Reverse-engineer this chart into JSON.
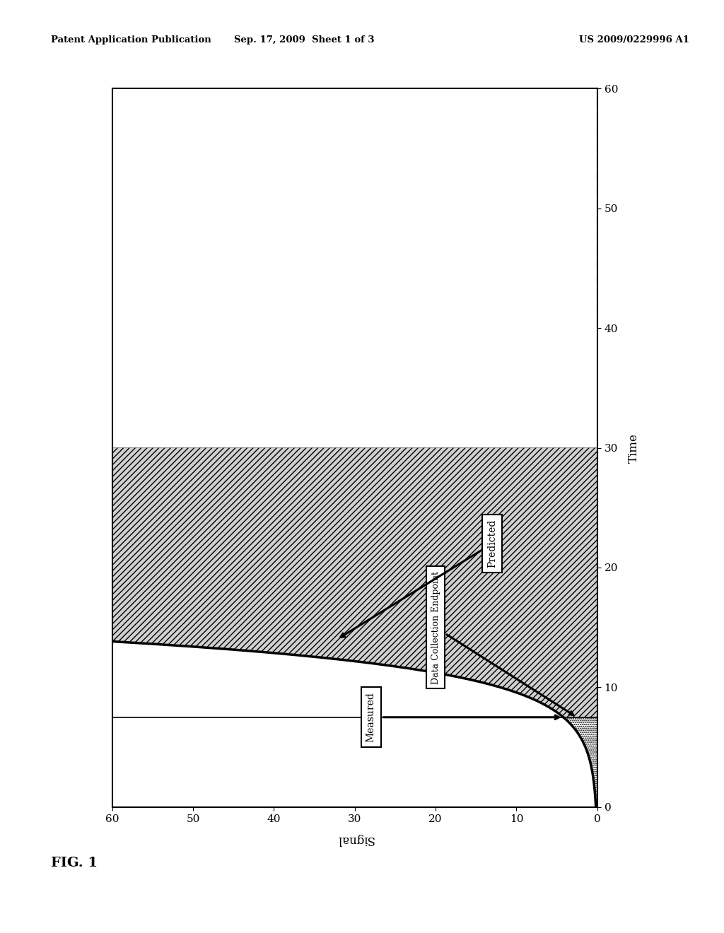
{
  "header_left": "Patent Application Publication",
  "header_center": "Sep. 17, 2009  Sheet 1 of 3",
  "header_right": "US 2009/0229996 A1",
  "fig_label": "FIG. 1",
  "xlabel_rotated": "Signal",
  "ylabel_right": "Time",
  "x_ticks": [
    0,
    10,
    20,
    30,
    40,
    50,
    60
  ],
  "y_ticks": [
    0,
    10,
    20,
    30,
    40,
    50,
    60
  ],
  "xlim": [
    60,
    0
  ],
  "ylim": [
    0,
    60
  ],
  "S0": 0.18,
  "k": 0.42,
  "endpoint_time": 7.5,
  "predicted_end_time": 30,
  "dashed_start": 40,
  "dashed_end": 60,
  "annotation_measured": "Measured",
  "annotation_endpoint": "Data Collection Endpoint",
  "annotation_predicted": "Predicted",
  "background_color": "#ffffff",
  "curve_lw": 2.5
}
